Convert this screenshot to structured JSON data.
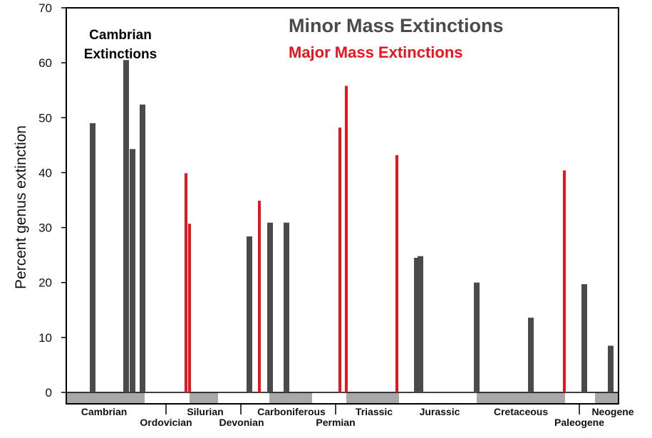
{
  "chart_data": {
    "type": "bar",
    "ylabel": "Percent genus extinction",
    "ylim": [
      0,
      70
    ],
    "yticks": [
      0,
      10,
      20,
      30,
      40,
      50,
      60,
      70
    ],
    "grid": false,
    "legend": {
      "minor": "Minor Mass Extinctions",
      "major": "Major Mass Extinctions"
    },
    "annotation": [
      "Cambrian",
      "Extinctions"
    ],
    "colors": {
      "minor": "#4a4a4a",
      "major": "#e8141e",
      "period_band": "#a8a8a8"
    },
    "series": [
      {
        "name": "Minor Mass Extinctions",
        "values": [
          49,
          60.5,
          44.3,
          52.4,
          28.4,
          30.9,
          30.9,
          24.5,
          24.8,
          20,
          13.6,
          19.7,
          8.5
        ]
      },
      {
        "name": "Major Mass Extinctions",
        "values": [
          39.9,
          30.7,
          34.9,
          48.2,
          55.8,
          43.2,
          40.4
        ]
      }
    ],
    "periods": [
      "Cambrian",
      "Ordovician",
      "Silurian",
      "Devonian",
      "Carboniferous",
      "Permian",
      "Triassic",
      "Jurassic",
      "Cretaceous",
      "Paleogene",
      "Neogene"
    ]
  }
}
